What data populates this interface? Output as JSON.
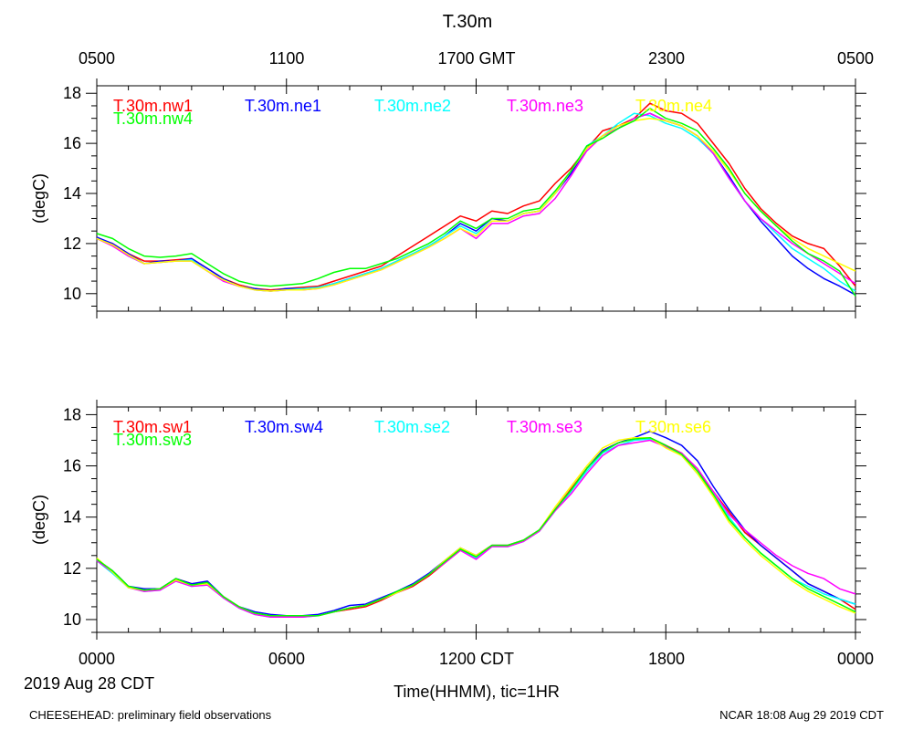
{
  "figure": {
    "title": "T.30m",
    "top_time_labels": [
      "0500",
      "1100",
      "1700 GMT",
      "2300",
      "0500"
    ],
    "bottom_time_labels": [
      "0000",
      "0600",
      "1200 CDT",
      "1800",
      "0000"
    ],
    "date_label": "2019 Aug 28 CDT",
    "x_axis_title": "Time(HHMM), tic=1HR",
    "footer_left": "CHEESEHEAD: preliminary field observations",
    "footer_right": "NCAR 18:08 Aug 29 2019 CDT"
  },
  "chart_data": [
    {
      "type": "line",
      "title": "T.30m",
      "xlabel": "Time(HHMM), tic=1HR",
      "ylabel": "(degC)",
      "xlim": [
        0,
        24
      ],
      "ylim": [
        9.3,
        18.3
      ],
      "y_ticks": [
        10,
        12,
        14,
        16,
        18
      ],
      "y_tick_labels": [
        "10",
        "12",
        "14",
        "16",
        "18"
      ],
      "x_ticks_hours": [
        0,
        6,
        12,
        18,
        24
      ],
      "x": [
        0,
        0.5,
        1,
        1.5,
        2,
        2.5,
        3,
        3.5,
        4,
        4.5,
        5,
        5.5,
        6,
        6.5,
        7,
        7.5,
        8,
        8.5,
        9,
        9.5,
        10,
        10.5,
        11,
        11.5,
        12,
        12.5,
        13,
        13.5,
        14,
        14.5,
        15,
        15.5,
        16,
        16.5,
        17,
        17.5,
        18,
        18.5,
        19,
        19.5,
        20,
        20.5,
        21,
        21.5,
        22,
        22.5,
        23,
        23.5,
        24
      ],
      "series": [
        {
          "name": "T.30m.nw1",
          "color": "#ff0000",
          "values": [
            12.2,
            12.0,
            11.6,
            11.3,
            11.3,
            11.35,
            11.4,
            11.0,
            10.6,
            10.35,
            10.2,
            10.15,
            10.2,
            10.25,
            10.3,
            10.5,
            10.7,
            10.9,
            11.1,
            11.5,
            11.9,
            12.3,
            12.7,
            13.1,
            12.9,
            13.3,
            13.2,
            13.5,
            13.7,
            14.4,
            15.0,
            15.8,
            16.5,
            16.7,
            17.0,
            17.6,
            17.3,
            17.2,
            16.8,
            16.0,
            15.2,
            14.2,
            13.4,
            12.8,
            12.3,
            12.0,
            11.8,
            11.1,
            10.3
          ]
        },
        {
          "name": "T.30m.ne1",
          "color": "#0000ff",
          "values": [
            12.25,
            12.0,
            11.6,
            11.2,
            11.3,
            11.3,
            11.4,
            11.0,
            10.6,
            10.3,
            10.2,
            10.1,
            10.2,
            10.2,
            10.25,
            10.4,
            10.6,
            10.8,
            11.0,
            11.3,
            11.6,
            11.9,
            12.3,
            12.8,
            12.5,
            13.0,
            12.9,
            13.2,
            13.3,
            14.0,
            14.8,
            15.8,
            16.3,
            16.6,
            17.0,
            17.2,
            16.9,
            16.7,
            16.3,
            15.6,
            14.7,
            13.7,
            12.9,
            12.2,
            11.5,
            11.0,
            10.6,
            10.3,
            9.95
          ]
        },
        {
          "name": "T.30m.ne2",
          "color": "#00ffff",
          "values": [
            12.2,
            11.95,
            11.5,
            11.2,
            11.25,
            11.3,
            11.35,
            10.9,
            10.55,
            10.3,
            10.15,
            10.1,
            10.15,
            10.2,
            10.25,
            10.4,
            10.6,
            10.8,
            11.0,
            11.3,
            11.6,
            11.9,
            12.3,
            12.7,
            12.4,
            12.9,
            12.9,
            13.2,
            13.3,
            14.0,
            14.9,
            15.9,
            16.3,
            16.8,
            17.2,
            17.1,
            16.8,
            16.6,
            16.2,
            15.6,
            14.6,
            13.7,
            13.0,
            12.4,
            11.8,
            11.4,
            11.0,
            10.5,
            10.1
          ]
        },
        {
          "name": "T.30m.ne3",
          "color": "#ff00ff",
          "values": [
            12.2,
            11.9,
            11.5,
            11.2,
            11.25,
            11.3,
            11.3,
            10.9,
            10.5,
            10.3,
            10.15,
            10.1,
            10.15,
            10.15,
            10.2,
            10.35,
            10.55,
            10.75,
            10.95,
            11.25,
            11.55,
            11.85,
            12.2,
            12.6,
            12.2,
            12.8,
            12.8,
            13.1,
            13.2,
            13.8,
            14.7,
            15.7,
            16.3,
            16.6,
            17.0,
            17.2,
            16.9,
            16.7,
            16.3,
            15.6,
            14.6,
            13.7,
            13.0,
            12.5,
            12.0,
            11.6,
            11.2,
            10.8,
            10.4
          ]
        },
        {
          "name": "T.30m.ne4",
          "color": "#ffff00",
          "values": [
            12.2,
            11.95,
            11.55,
            11.2,
            11.25,
            11.3,
            11.3,
            10.9,
            10.55,
            10.3,
            10.15,
            10.1,
            10.15,
            10.15,
            10.2,
            10.35,
            10.55,
            10.75,
            10.95,
            11.25,
            11.55,
            11.85,
            12.2,
            12.6,
            12.3,
            12.9,
            12.9,
            13.2,
            13.3,
            14.0,
            14.9,
            15.8,
            16.3,
            16.7,
            16.9,
            17.0,
            16.9,
            16.7,
            16.3,
            15.7,
            14.9,
            14.0,
            13.3,
            12.7,
            12.2,
            11.8,
            11.5,
            11.2,
            10.9
          ]
        },
        {
          "name": "T.30m.nw4",
          "color": "#00ff00",
          "values": [
            12.4,
            12.2,
            11.8,
            11.5,
            11.45,
            11.5,
            11.6,
            11.2,
            10.8,
            10.5,
            10.35,
            10.3,
            10.35,
            10.4,
            10.6,
            10.85,
            11.0,
            11.0,
            11.2,
            11.4,
            11.7,
            12.0,
            12.4,
            12.9,
            12.6,
            13.0,
            13.0,
            13.3,
            13.4,
            14.1,
            14.9,
            15.9,
            16.2,
            16.6,
            16.9,
            17.4,
            17.0,
            16.8,
            16.5,
            15.8,
            15.0,
            14.0,
            13.3,
            12.7,
            12.1,
            11.6,
            11.3,
            10.9,
            9.9
          ]
        }
      ]
    },
    {
      "type": "line",
      "title": "",
      "xlabel": "Time(HHMM), tic=1HR",
      "ylabel": "(degC)",
      "xlim": [
        0,
        24
      ],
      "ylim": [
        9.5,
        18.3
      ],
      "y_ticks": [
        10,
        12,
        14,
        16,
        18
      ],
      "y_tick_labels": [
        "10",
        "12",
        "14",
        "16",
        "18"
      ],
      "x_ticks_hours": [
        0,
        6,
        12,
        18,
        24
      ],
      "x": [
        0,
        0.5,
        1,
        1.5,
        2,
        2.5,
        3,
        3.5,
        4,
        4.5,
        5,
        5.5,
        6,
        6.5,
        7,
        7.5,
        8,
        8.5,
        9,
        9.5,
        10,
        10.5,
        11,
        11.5,
        12,
        12.5,
        13,
        13.5,
        14,
        14.5,
        15,
        15.5,
        16,
        16.5,
        17,
        17.5,
        18,
        18.5,
        19,
        19.5,
        20,
        20.5,
        21,
        21.5,
        22,
        22.5,
        23,
        23.5,
        24
      ],
      "series": [
        {
          "name": "T.30m.sw1",
          "color": "#ff0000",
          "values": [
            12.35,
            11.9,
            11.3,
            11.15,
            11.2,
            11.6,
            11.4,
            11.45,
            10.9,
            10.5,
            10.25,
            10.15,
            10.15,
            10.15,
            10.15,
            10.3,
            10.4,
            10.5,
            10.75,
            11.05,
            11.3,
            11.7,
            12.2,
            12.7,
            12.5,
            12.9,
            12.9,
            13.1,
            13.5,
            14.3,
            15.1,
            15.9,
            16.6,
            16.9,
            17.1,
            17.1,
            16.8,
            16.5,
            15.8,
            15.0,
            14.2,
            13.4,
            12.9,
            12.4,
            11.9,
            11.4,
            11.1,
            10.8,
            10.4
          ]
        },
        {
          "name": "T.30m.sw4",
          "color": "#0000ff",
          "values": [
            12.3,
            11.9,
            11.3,
            11.2,
            11.2,
            11.6,
            11.4,
            11.5,
            10.9,
            10.5,
            10.3,
            10.2,
            10.15,
            10.15,
            10.2,
            10.35,
            10.55,
            10.6,
            10.85,
            11.1,
            11.4,
            11.8,
            12.3,
            12.8,
            12.5,
            12.9,
            12.9,
            13.1,
            13.5,
            14.3,
            15.0,
            15.9,
            16.6,
            16.9,
            17.1,
            17.35,
            17.1,
            16.8,
            16.2,
            15.2,
            14.3,
            13.5,
            12.9,
            12.4,
            11.9,
            11.4,
            11.1,
            10.8,
            10.6
          ]
        },
        {
          "name": "T.30m.se2",
          "color": "#00ffff",
          "values": [
            12.3,
            11.8,
            11.25,
            11.1,
            11.15,
            11.5,
            11.3,
            11.35,
            10.85,
            10.45,
            10.2,
            10.1,
            10.1,
            10.1,
            10.15,
            10.3,
            10.45,
            10.55,
            10.8,
            11.05,
            11.35,
            11.75,
            12.25,
            12.75,
            12.4,
            12.85,
            12.85,
            13.05,
            13.45,
            14.25,
            15.0,
            15.8,
            16.5,
            16.8,
            17.0,
            17.05,
            16.75,
            16.4,
            15.7,
            14.9,
            14.0,
            13.2,
            12.6,
            12.1,
            11.6,
            11.3,
            11.0,
            10.8,
            10.6
          ]
        },
        {
          "name": "T.30m.se3",
          "color": "#ff00ff",
          "values": [
            12.3,
            11.85,
            11.25,
            11.1,
            11.15,
            11.5,
            11.3,
            11.35,
            10.85,
            10.45,
            10.2,
            10.1,
            10.1,
            10.1,
            10.15,
            10.3,
            10.45,
            10.55,
            10.8,
            11.05,
            11.35,
            11.75,
            12.2,
            12.7,
            12.35,
            12.85,
            12.85,
            13.05,
            13.45,
            14.25,
            14.9,
            15.7,
            16.4,
            16.8,
            16.9,
            17.0,
            16.75,
            16.5,
            15.9,
            15.0,
            14.1,
            13.5,
            13.0,
            12.5,
            12.1,
            11.8,
            11.6,
            11.2,
            11.0
          ]
        },
        {
          "name": "T.30m.se6",
          "color": "#ffff00",
          "values": [
            12.4,
            11.85,
            11.25,
            11.15,
            11.2,
            11.55,
            11.35,
            11.4,
            10.9,
            10.5,
            10.25,
            10.15,
            10.15,
            10.15,
            10.15,
            10.3,
            10.45,
            10.55,
            10.8,
            11.05,
            11.35,
            11.75,
            12.3,
            12.8,
            12.5,
            12.9,
            12.9,
            13.1,
            13.5,
            14.4,
            15.2,
            16.0,
            16.7,
            17.0,
            17.1,
            17.1,
            16.7,
            16.4,
            15.7,
            14.8,
            13.8,
            13.1,
            12.5,
            12.0,
            11.5,
            11.1,
            10.8,
            10.5,
            10.25
          ]
        },
        {
          "name": "T.30m.sw3",
          "color": "#00ff00",
          "values": [
            12.35,
            11.9,
            11.3,
            11.15,
            11.2,
            11.6,
            11.35,
            11.45,
            10.9,
            10.5,
            10.25,
            10.15,
            10.15,
            10.15,
            10.15,
            10.3,
            10.45,
            10.55,
            10.8,
            11.1,
            11.35,
            11.75,
            12.25,
            12.75,
            12.45,
            12.9,
            12.9,
            13.1,
            13.5,
            14.3,
            15.05,
            15.9,
            16.55,
            16.9,
            17.05,
            17.1,
            16.8,
            16.45,
            15.8,
            14.9,
            13.9,
            13.2,
            12.6,
            12.1,
            11.6,
            11.2,
            10.9,
            10.6,
            10.3
          ]
        }
      ]
    }
  ]
}
